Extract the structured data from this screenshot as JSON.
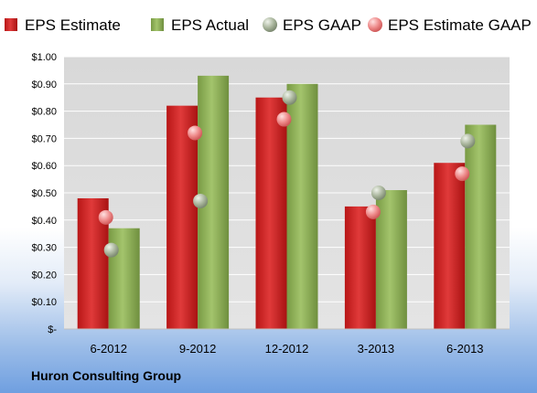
{
  "chart_data": {
    "type": "bar",
    "title": "",
    "xlabel": "",
    "ylabel": "",
    "ylim": [
      0,
      1.0
    ],
    "y_ticks": [
      {
        "value": 1.0,
        "label": "$1.00"
      },
      {
        "value": 0.9,
        "label": "$0.90"
      },
      {
        "value": 0.8,
        "label": "$0.80"
      },
      {
        "value": 0.7,
        "label": "$0.70"
      },
      {
        "value": 0.6,
        "label": "$0.60"
      },
      {
        "value": 0.5,
        "label": "$0.50"
      },
      {
        "value": 0.4,
        "label": "$0.40"
      },
      {
        "value": 0.3,
        "label": "$0.30"
      },
      {
        "value": 0.2,
        "label": "$0.20"
      },
      {
        "value": 0.1,
        "label": "$0.10"
      },
      {
        "value": 0.0,
        "label": "$-"
      }
    ],
    "categories": [
      "6-2012",
      "9-2012",
      "12-2012",
      "3-2013",
      "6-2013"
    ],
    "series": [
      {
        "name": "EPS Estimate",
        "kind": "bar",
        "color": "#d42a2a",
        "values": [
          0.48,
          0.82,
          0.85,
          0.45,
          0.61
        ]
      },
      {
        "name": "EPS Actual",
        "kind": "bar",
        "color": "#8fb25a",
        "values": [
          0.37,
          0.93,
          0.9,
          0.51,
          0.75
        ]
      },
      {
        "name": "EPS GAAP",
        "kind": "marker",
        "color": "#9aaa8e",
        "values": [
          0.29,
          0.47,
          0.85,
          0.5,
          0.69
        ]
      },
      {
        "name": "EPS Estimate GAAP",
        "kind": "marker",
        "color": "#e88686",
        "values": [
          0.41,
          0.72,
          0.77,
          0.43,
          0.57
        ]
      }
    ],
    "grid": true,
    "legend_position": "top",
    "footer": "Huron Consulting Group",
    "plot_background": "#dcdcdc"
  }
}
